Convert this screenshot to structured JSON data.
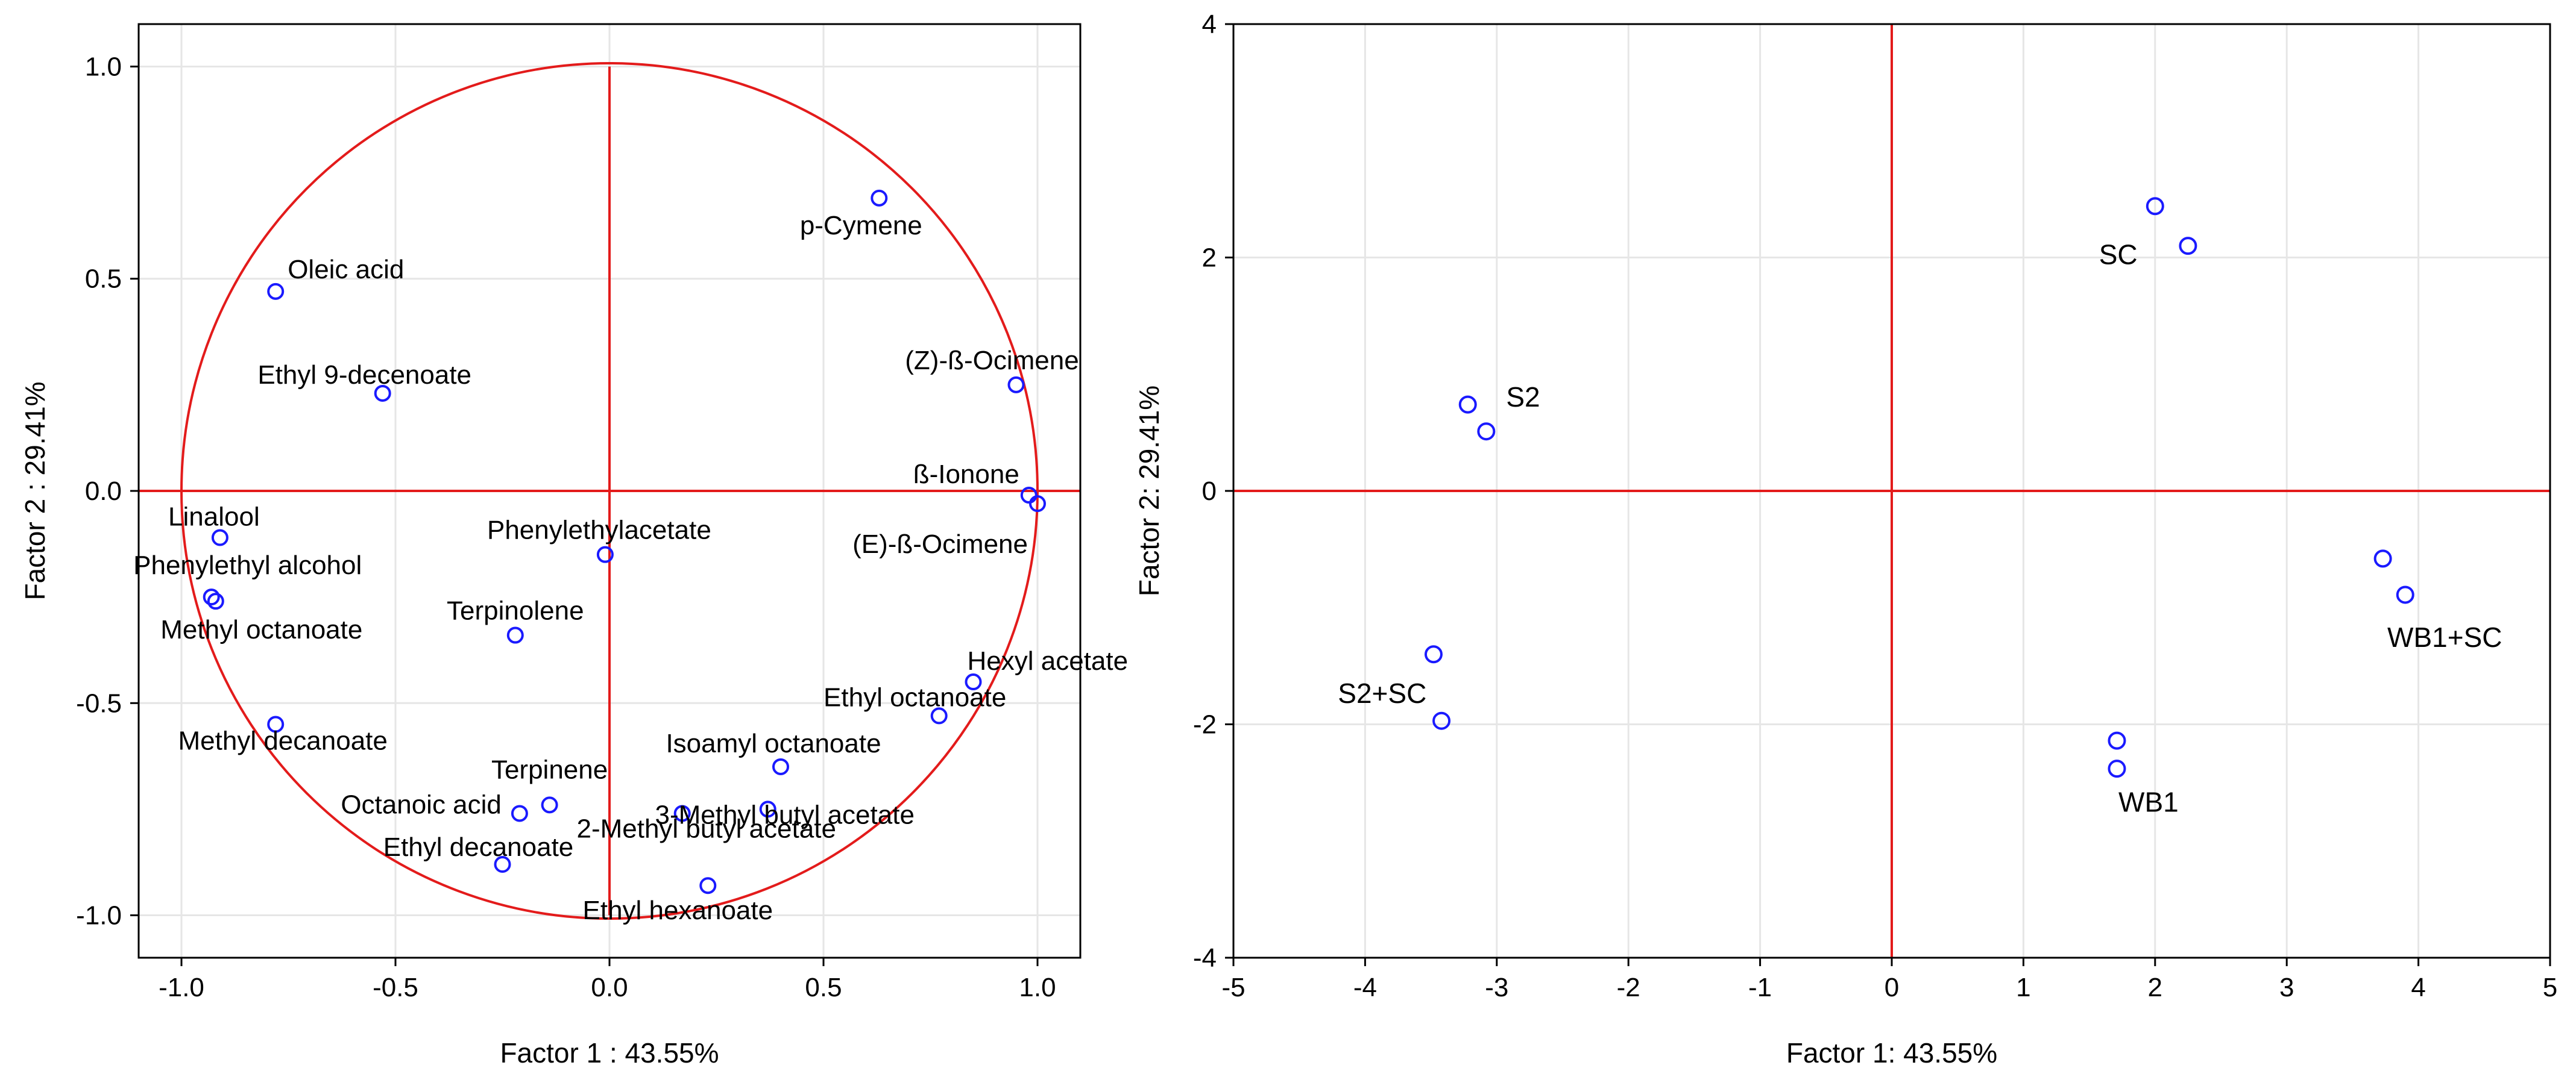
{
  "colors": {
    "axis_line": "#e31b1b",
    "marker": "#1a1aff",
    "frame": "#000000",
    "grid": "#e6e6e6"
  },
  "chart_data": [
    {
      "type": "scatter",
      "subtype": "pca-loadings-correlation-circle",
      "xlabel": "Factor 1 : 43.55%",
      "ylabel": "Factor 2 : 29.41%",
      "xlim": [
        -1.1,
        1.1
      ],
      "ylim": [
        -1.1,
        1.1
      ],
      "xticks": [
        "-1.0",
        "-0.5",
        "0.0",
        "0.5",
        "1.0"
      ],
      "yticks": [
        "1.0",
        "0.5",
        "0.0",
        "-0.5",
        "-1.0"
      ],
      "grid": true,
      "unit_circle": true,
      "points": [
        {
          "label": "Oleic acid",
          "x": -0.78,
          "y": 0.47
        },
        {
          "label": "Ethyl 9-decenoate",
          "x": -0.53,
          "y": 0.23
        },
        {
          "label": "p-Cymene",
          "x": 0.63,
          "y": 0.69
        },
        {
          "label": "(Z)-ß-Ocimene",
          "x": 0.95,
          "y": 0.25
        },
        {
          "label": "ß-Ionone",
          "x": 0.98,
          "y": -0.01
        },
        {
          "label": "(E)-ß-Ocimene",
          "x": 1.0,
          "y": -0.03
        },
        {
          "label": "Linalool",
          "x": -0.91,
          "y": -0.11
        },
        {
          "label": "Phenylethyl alcohol",
          "x": -0.93,
          "y": -0.25
        },
        {
          "label": "Methyl octanoate",
          "x": -0.92,
          "y": -0.26
        },
        {
          "label": "Phenylethylacetate",
          "x": -0.01,
          "y": -0.15
        },
        {
          "label": "Terpinolene",
          "x": -0.22,
          "y": -0.34
        },
        {
          "label": "Hexyl acetate",
          "x": 0.85,
          "y": -0.45
        },
        {
          "label": "Ethyl octanoate",
          "x": 0.77,
          "y": -0.53
        },
        {
          "label": "Methyl decanoate",
          "x": -0.78,
          "y": -0.55
        },
        {
          "label": "Isoamyl octanoate",
          "x": 0.4,
          "y": -0.65
        },
        {
          "label": "Terpinene",
          "x": -0.14,
          "y": -0.74
        },
        {
          "label": "Octanoic acid",
          "x": -0.21,
          "y": -0.76
        },
        {
          "label": "3-Methyl butyl acetate",
          "x": 0.37,
          "y": -0.75
        },
        {
          "label": "2-Methyl butyl acetate",
          "x": 0.17,
          "y": -0.76
        },
        {
          "label": "Ethyl decanoate",
          "x": -0.25,
          "y": -0.88
        },
        {
          "label": "Ethyl hexanoate",
          "x": 0.23,
          "y": -0.93
        }
      ]
    },
    {
      "type": "scatter",
      "subtype": "pca-scores",
      "xlabel": "Factor 1: 43.55%",
      "ylabel": "Factor 2: 29.41%",
      "xlim": [
        -5,
        5
      ],
      "ylim": [
        -4,
        4
      ],
      "xticks": [
        "-5",
        "-4",
        "-3",
        "-2",
        "-1",
        "0",
        "1",
        "2",
        "3",
        "4",
        "5"
      ],
      "yticks": [
        "4",
        "2",
        "0",
        "-2",
        "-4"
      ],
      "grid": true,
      "points": [
        {
          "x": 2.0,
          "y": 2.44
        },
        {
          "x": 2.25,
          "y": 2.1
        },
        {
          "x": -3.22,
          "y": 0.74
        },
        {
          "x": -3.08,
          "y": 0.51
        },
        {
          "x": 3.73,
          "y": -0.58
        },
        {
          "x": 3.9,
          "y": -0.89
        },
        {
          "x": -3.48,
          "y": -1.4
        },
        {
          "x": -3.42,
          "y": -1.97
        },
        {
          "x": 1.71,
          "y": -2.14
        },
        {
          "x": 1.71,
          "y": -2.38
        }
      ],
      "group_labels": [
        {
          "label": "SC",
          "x": 1.72,
          "y": 2.02
        },
        {
          "label": "S2",
          "x": -2.8,
          "y": 0.8
        },
        {
          "label": "WB1+SC",
          "x": 4.2,
          "y": -1.26
        },
        {
          "label": "S2+SC",
          "x": -3.87,
          "y": -1.74
        },
        {
          "label": "WB1",
          "x": 1.95,
          "y": -2.67
        }
      ]
    }
  ]
}
